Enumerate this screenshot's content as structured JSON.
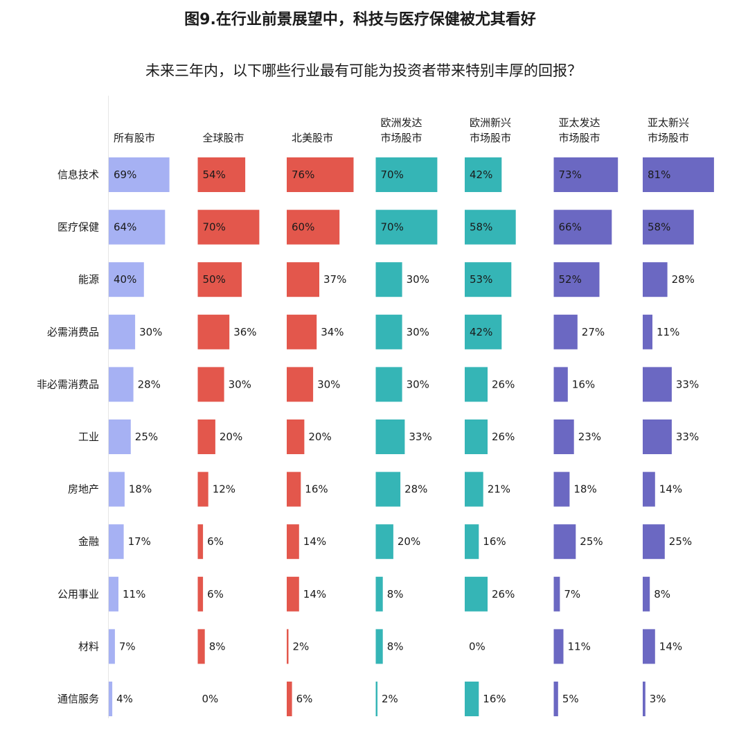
{
  "title": "图9.在行业前景展望中，科技与医疗保健被尤其看好",
  "subtitle": "未来三年内，以下哪些行业最有可能为投资者带来特别丰厚的回报？",
  "chart_data": {
    "type": "bar",
    "orientation": "horizontal",
    "layout": "small-multiples",
    "categories": [
      "信息技术",
      "医疗保健",
      "能源",
      "必需消费品",
      "非必需消费品",
      "工业",
      "房地产",
      "金融",
      "公用事业",
      "材料",
      "通信服务"
    ],
    "series": [
      {
        "name": [
          "所有股市"
        ],
        "color": "#a6b1f3",
        "values": [
          69,
          64,
          40,
          30,
          28,
          25,
          18,
          17,
          11,
          7,
          4
        ]
      },
      {
        "name": [
          "全球股市"
        ],
        "color": "#e3574c",
        "values": [
          54,
          70,
          50,
          36,
          30,
          20,
          12,
          6,
          6,
          8,
          0
        ]
      },
      {
        "name": [
          "北美股市"
        ],
        "color": "#e3574c",
        "values": [
          76,
          60,
          37,
          34,
          30,
          20,
          16,
          14,
          14,
          2,
          6
        ]
      },
      {
        "name": [
          "欧洲发达",
          "市场股市"
        ],
        "color": "#35b5b6",
        "values": [
          70,
          70,
          30,
          30,
          30,
          33,
          28,
          20,
          8,
          8,
          2
        ]
      },
      {
        "name": [
          "欧洲新兴",
          "市场股市"
        ],
        "color": "#35b5b6",
        "values": [
          42,
          58,
          53,
          42,
          26,
          26,
          21,
          16,
          26,
          0,
          16
        ]
      },
      {
        "name": [
          "亚太发达",
          "市场股市"
        ],
        "color": "#6b68c2",
        "values": [
          73,
          66,
          52,
          27,
          16,
          23,
          18,
          25,
          7,
          11,
          5
        ]
      },
      {
        "name": [
          "亚太新兴",
          "市场股市"
        ],
        "color": "#6b68c2",
        "values": [
          81,
          58,
          28,
          11,
          33,
          33,
          14,
          25,
          8,
          14,
          3
        ]
      }
    ],
    "value_suffix": "%",
    "grid": false,
    "legend": "none"
  }
}
